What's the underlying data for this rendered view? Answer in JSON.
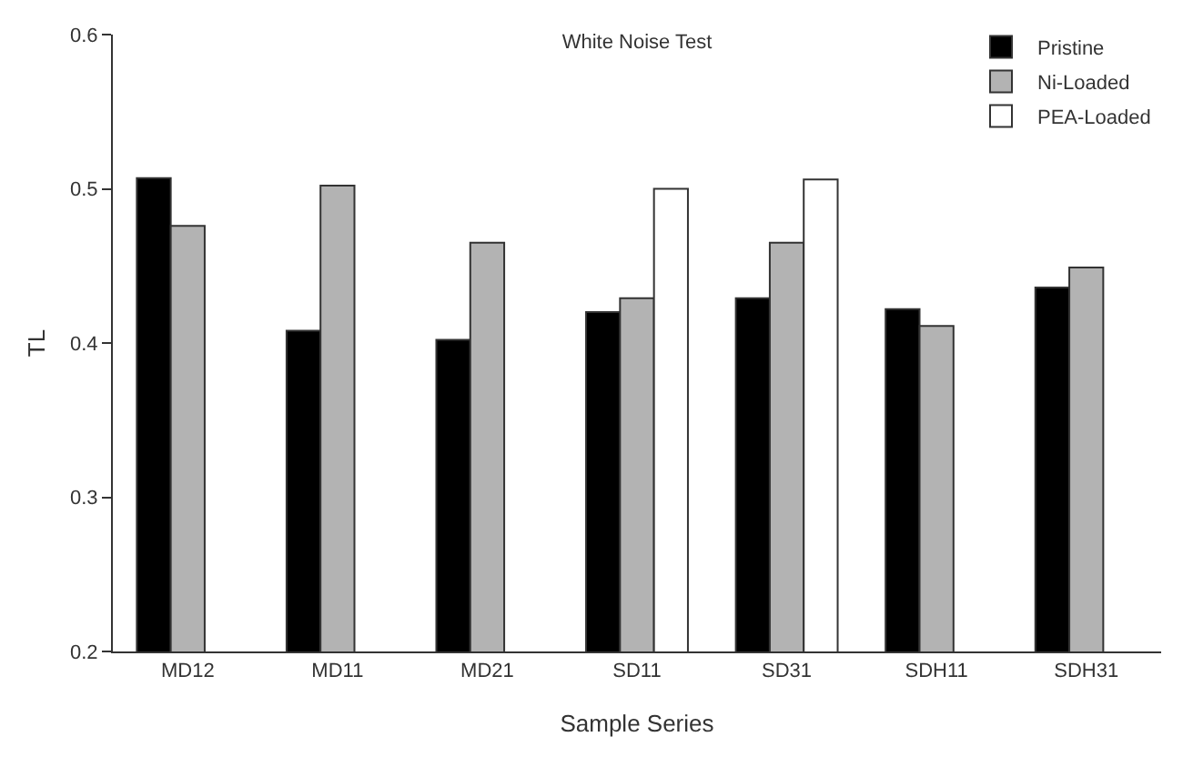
{
  "chart_data": {
    "type": "bar",
    "title": "White Noise Test",
    "xlabel": "Sample Series",
    "ylabel": "TL",
    "categories": [
      "MD12",
      "MD11",
      "MD21",
      "SD11",
      "SD31",
      "SDH11",
      "SDH31"
    ],
    "series": [
      {
        "name": "Pristine",
        "color": "#000000",
        "values": [
          0.507,
          0.408,
          0.402,
          0.42,
          0.429,
          0.422,
          0.436
        ]
      },
      {
        "name": "Ni-Loaded",
        "color": "#b3b3b3",
        "values": [
          0.476,
          0.502,
          0.465,
          0.429,
          0.465,
          0.411,
          0.449
        ]
      },
      {
        "name": "PEA-Loaded",
        "color": "#ffffff",
        "values": [
          null,
          null,
          null,
          0.5,
          0.506,
          null,
          null
        ]
      }
    ],
    "ylim": [
      0.2,
      0.6
    ],
    "yticks": [
      0.2,
      0.3,
      0.4,
      0.5,
      0.6
    ],
    "grid": false,
    "legend": "top right"
  }
}
